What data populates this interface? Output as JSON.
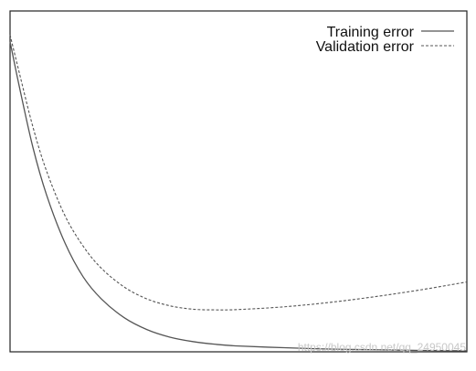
{
  "chart_data": {
    "type": "line",
    "title": "",
    "xlabel": "",
    "ylabel": "",
    "grid": false,
    "legend_position": "top-right",
    "xlim": [
      0,
      1
    ],
    "ylim": [
      0,
      1
    ],
    "x": [
      0,
      0.02,
      0.05,
      0.08,
      0.12,
      0.16,
      0.2,
      0.25,
      0.3,
      0.35,
      0.4,
      0.45,
      0.5,
      0.6,
      0.7,
      0.8,
      0.9,
      1.0
    ],
    "series": [
      {
        "name": "Training error",
        "style": "solid",
        "color": "#555555",
        "values": [
          0.91,
          0.78,
          0.6,
          0.46,
          0.32,
          0.22,
          0.155,
          0.1,
          0.065,
          0.043,
          0.03,
          0.022,
          0.017,
          0.012,
          0.008,
          0.006,
          0.004,
          0.003
        ]
      },
      {
        "name": "Validation error",
        "style": "dashed",
        "color": "#555555",
        "values": [
          0.93,
          0.82,
          0.66,
          0.53,
          0.4,
          0.31,
          0.245,
          0.19,
          0.155,
          0.135,
          0.125,
          0.123,
          0.124,
          0.132,
          0.145,
          0.162,
          0.182,
          0.205
        ]
      }
    ]
  },
  "watermark": "https://blog.csdn.net/qq_24950045"
}
